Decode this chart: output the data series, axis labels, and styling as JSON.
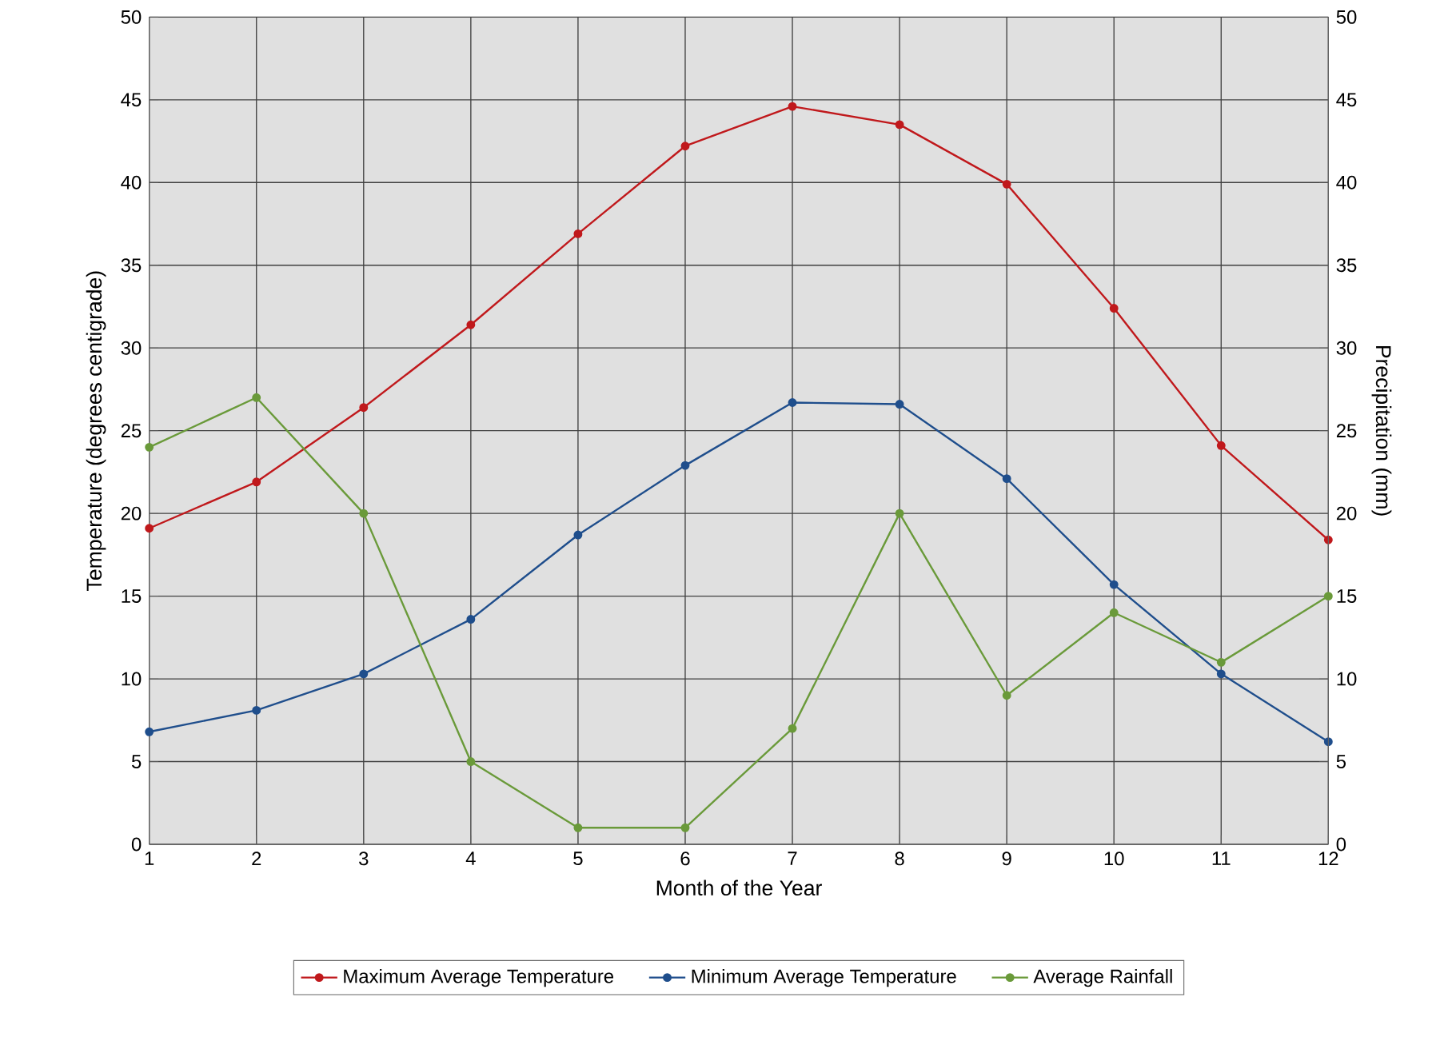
{
  "chart_data": {
    "type": "line",
    "xlabel": "Month of the Year",
    "ylabel": "Temperature (degrees centigrade)",
    "y2label": "Precipitation (mm)",
    "x": [
      1,
      2,
      3,
      4,
      5,
      6,
      7,
      8,
      9,
      10,
      11,
      12
    ],
    "series": [
      {
        "name": "Maximum Average Temperature",
        "color": "#c0191c",
        "values": [
          19.1,
          21.9,
          26.4,
          31.4,
          36.9,
          42.2,
          44.6,
          43.5,
          39.9,
          32.4,
          24.1,
          18.4
        ]
      },
      {
        "name": "Minimum Average Temperature",
        "color": "#1f4e8c",
        "values": [
          6.8,
          8.1,
          10.3,
          13.6,
          18.7,
          22.9,
          26.7,
          26.6,
          22.1,
          15.7,
          10.3,
          6.2
        ]
      },
      {
        "name": "Average Rainfall",
        "color": "#6a9a3a",
        "axis": "y2",
        "values": [
          24,
          27,
          20,
          5,
          1,
          1,
          7,
          20,
          9,
          14,
          11,
          15
        ]
      }
    ],
    "xlim": [
      1,
      12
    ],
    "xticks": [
      1,
      2,
      3,
      4,
      5,
      6,
      7,
      8,
      9,
      10,
      11,
      12
    ],
    "ylim": [
      0,
      50
    ],
    "yticks": [
      0,
      5,
      10,
      15,
      20,
      25,
      30,
      35,
      40,
      45,
      50
    ],
    "y2lim": [
      0,
      50
    ],
    "y2ticks": [
      0,
      5,
      10,
      15,
      20,
      25,
      30,
      35,
      40,
      45,
      50
    ],
    "grid": true,
    "legend": "bottom",
    "marker": "circle",
    "line_style": "solid"
  }
}
